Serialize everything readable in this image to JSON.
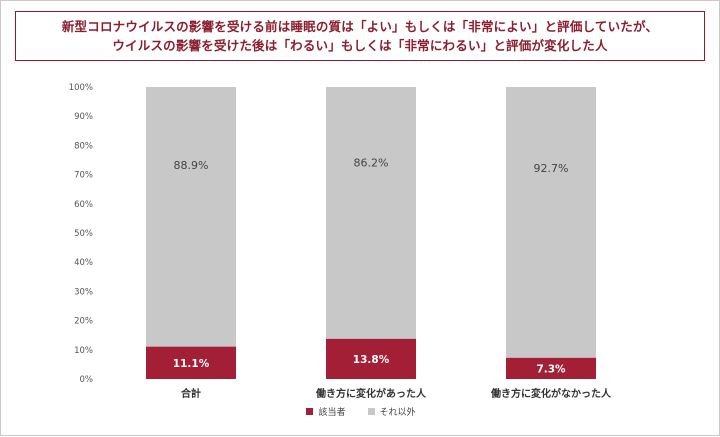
{
  "title_lines": [
    "新型コロナウイルスの影響を受ける前は睡眠の質は「よい」もしくは「非常によい」と評価していたが、",
    "ウイルスの影響を受けた後は「わるい」もしくは「非常にわるい」と評価が変化した人"
  ],
  "colors": {
    "accent": "#8b1e2f",
    "bar_main": "#a31f36",
    "bar_rest": "#c8c8c8"
  },
  "chart_data": {
    "type": "bar",
    "stacked": true,
    "categories": [
      "合計",
      "働き方に変化があった人",
      "働き方に変化がなかった人"
    ],
    "series": [
      {
        "name": "該当者",
        "values": [
          11.1,
          13.8,
          7.3
        ],
        "labels": [
          "11.1%",
          "13.8%",
          "7.3%"
        ],
        "color": "#a31f36"
      },
      {
        "name": "それ以外",
        "values": [
          88.9,
          86.2,
          92.7
        ],
        "labels": [
          "88.9%",
          "86.2%",
          "92.7%"
        ],
        "color": "#c8c8c8"
      }
    ],
    "yticks": [
      "0%",
      "10%",
      "20%",
      "30%",
      "40%",
      "50%",
      "60%",
      "70%",
      "80%",
      "90%",
      "100%"
    ],
    "ylim": [
      0,
      100
    ],
    "legend_position": "bottom-center",
    "grid": false
  }
}
